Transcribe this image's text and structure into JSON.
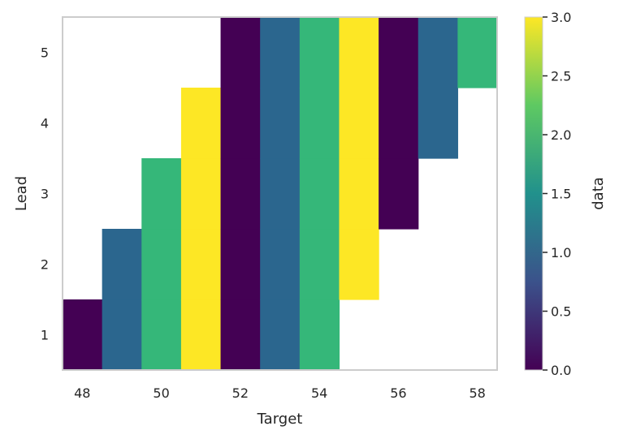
{
  "chart_data": {
    "type": "heatmap",
    "xlabel": "Target",
    "ylabel": "Lead",
    "x_categories": [
      48,
      49,
      50,
      51,
      52,
      53,
      54,
      55,
      56,
      57,
      58
    ],
    "y_categories": [
      1,
      2,
      3,
      4,
      5
    ],
    "x_tick_labels": [
      "48",
      "50",
      "52",
      "54",
      "56",
      "58"
    ],
    "y_tick_labels": [
      "1",
      "2",
      "3",
      "4",
      "5"
    ],
    "cells": [
      {
        "target": 48,
        "lead": 1,
        "value": 0
      },
      {
        "target": 49,
        "lead": 1,
        "value": 1
      },
      {
        "target": 49,
        "lead": 2,
        "value": 1
      },
      {
        "target": 50,
        "lead": 1,
        "value": 2
      },
      {
        "target": 50,
        "lead": 2,
        "value": 2
      },
      {
        "target": 50,
        "lead": 3,
        "value": 2
      },
      {
        "target": 51,
        "lead": 1,
        "value": 3
      },
      {
        "target": 51,
        "lead": 2,
        "value": 3
      },
      {
        "target": 51,
        "lead": 3,
        "value": 3
      },
      {
        "target": 51,
        "lead": 4,
        "value": 3
      },
      {
        "target": 52,
        "lead": 1,
        "value": 0
      },
      {
        "target": 52,
        "lead": 2,
        "value": 0
      },
      {
        "target": 52,
        "lead": 3,
        "value": 0
      },
      {
        "target": 52,
        "lead": 4,
        "value": 0
      },
      {
        "target": 52,
        "lead": 5,
        "value": 0
      },
      {
        "target": 53,
        "lead": 1,
        "value": 1
      },
      {
        "target": 53,
        "lead": 2,
        "value": 1
      },
      {
        "target": 53,
        "lead": 3,
        "value": 1
      },
      {
        "target": 53,
        "lead": 4,
        "value": 1
      },
      {
        "target": 53,
        "lead": 5,
        "value": 1
      },
      {
        "target": 54,
        "lead": 1,
        "value": 2
      },
      {
        "target": 54,
        "lead": 2,
        "value": 2
      },
      {
        "target": 54,
        "lead": 3,
        "value": 2
      },
      {
        "target": 54,
        "lead": 4,
        "value": 2
      },
      {
        "target": 54,
        "lead": 5,
        "value": 2
      },
      {
        "target": 55,
        "lead": 2,
        "value": 3
      },
      {
        "target": 55,
        "lead": 3,
        "value": 3
      },
      {
        "target": 55,
        "lead": 4,
        "value": 3
      },
      {
        "target": 55,
        "lead": 5,
        "value": 3
      },
      {
        "target": 56,
        "lead": 3,
        "value": 0
      },
      {
        "target": 56,
        "lead": 4,
        "value": 0
      },
      {
        "target": 56,
        "lead": 5,
        "value": 0
      },
      {
        "target": 57,
        "lead": 4,
        "value": 1
      },
      {
        "target": 57,
        "lead": 5,
        "value": 1
      },
      {
        "target": 58,
        "lead": 5,
        "value": 2
      }
    ],
    "colorbar": {
      "label": "data",
      "range": [
        0.0,
        3.0
      ],
      "tick_values": [
        0.0,
        0.5,
        1.0,
        1.5,
        2.0,
        2.5,
        3.0
      ],
      "tick_labels": [
        "0.0",
        "0.5",
        "1.0",
        "1.5",
        "2.0",
        "2.5",
        "3.0"
      ],
      "colormap": "viridis",
      "colormap_stops": [
        "#440154",
        "#3b528b",
        "#21918c",
        "#5ec962",
        "#fde725"
      ]
    },
    "value_colors": {
      "0": "#440154",
      "1": "#2b668e",
      "2": "#35b779",
      "3": "#fde725"
    },
    "grid": false,
    "frame_color": "#cccccc"
  }
}
